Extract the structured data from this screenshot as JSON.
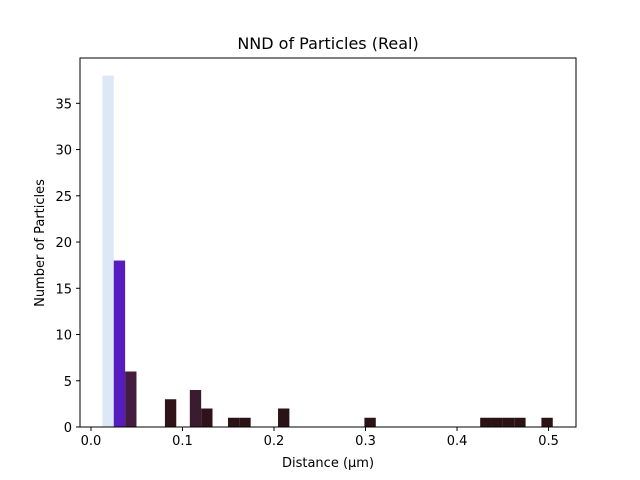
{
  "chart_data": {
    "type": "bar",
    "title": "NND of Particles (Real)",
    "xlabel": "Distance (µm)",
    "ylabel": "Number of Particles",
    "xlim": [
      -0.012,
      0.53
    ],
    "ylim": [
      0,
      39.9
    ],
    "bin_width": 0.0124,
    "xticks": [
      0.0,
      0.1,
      0.2,
      0.3,
      0.4,
      0.5
    ],
    "xtick_labels": [
      "0.0",
      "0.1",
      "0.2",
      "0.3",
      "0.4",
      "0.5"
    ],
    "yticks": [
      0,
      5,
      10,
      15,
      20,
      25,
      30,
      35
    ],
    "ytick_labels": [
      "0",
      "5",
      "10",
      "15",
      "20",
      "25",
      "30",
      "35"
    ],
    "grid": false,
    "bins": [
      {
        "x": 0.0125,
        "count": 38,
        "color": "#dce8f6"
      },
      {
        "x": 0.0249,
        "count": 18,
        "color": "#561cbf"
      },
      {
        "x": 0.0373,
        "count": 6,
        "color": "#441c3f"
      },
      {
        "x": 0.0808,
        "count": 3,
        "color": "#2f1319"
      },
      {
        "x": 0.108,
        "count": 4,
        "color": "#3b1b2f"
      },
      {
        "x": 0.1204,
        "count": 2,
        "color": "#2f1319"
      },
      {
        "x": 0.1497,
        "count": 1,
        "color": "#2a1215"
      },
      {
        "x": 0.1621,
        "count": 1,
        "color": "#2a1215"
      },
      {
        "x": 0.2044,
        "count": 2,
        "color": "#2a1215"
      },
      {
        "x": 0.2988,
        "count": 1,
        "color": "#2a1215"
      },
      {
        "x": 0.4253,
        "count": 1,
        "color": "#2a1215"
      },
      {
        "x": 0.4377,
        "count": 1,
        "color": "#2a1215"
      },
      {
        "x": 0.4501,
        "count": 1,
        "color": "#2a1215"
      },
      {
        "x": 0.4625,
        "count": 1,
        "color": "#2a1215"
      },
      {
        "x": 0.4922,
        "count": 1,
        "color": "#2a1215"
      }
    ]
  }
}
